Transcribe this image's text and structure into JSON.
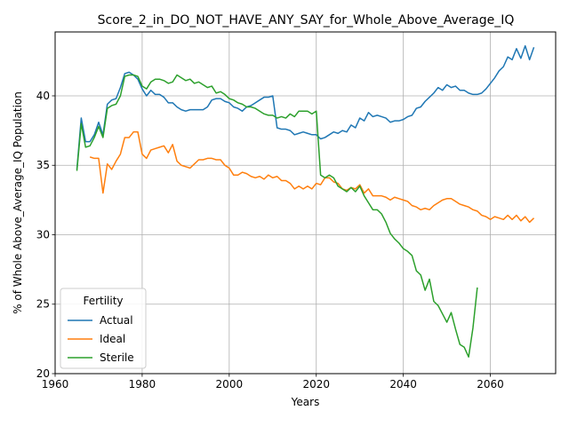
{
  "chart_data": {
    "type": "line",
    "title": "Score_2_in_DO_NOT_HAVE_ANY_SAY_for_Whole_Above_Average_IQ",
    "xlabel": "Years",
    "ylabel": "% of Whole Above_Average_IQ Population",
    "xlim": [
      1960,
      2075
    ],
    "ylim": [
      20,
      44.6
    ],
    "xticks": [
      1960,
      1980,
      2000,
      2020,
      2040,
      2060
    ],
    "yticks": [
      20,
      25,
      30,
      35,
      40
    ],
    "grid": true,
    "legend": {
      "title": "Fertility",
      "position": "lower-left"
    },
    "series": [
      {
        "name": "Actual",
        "color": "#1f77b4",
        "points": [
          [
            1965,
            34.7
          ],
          [
            1966,
            38.4
          ],
          [
            1967,
            36.7
          ],
          [
            1968,
            36.7
          ],
          [
            1969,
            37.2
          ],
          [
            1970,
            38.1
          ],
          [
            1971,
            37.2
          ],
          [
            1972,
            39.4
          ],
          [
            1973,
            39.7
          ],
          [
            1974,
            39.8
          ],
          [
            1975,
            40.6
          ],
          [
            1976,
            41.6
          ],
          [
            1977,
            41.7
          ],
          [
            1978,
            41.5
          ],
          [
            1979,
            41.2
          ],
          [
            1980,
            40.5
          ],
          [
            1981,
            40.0
          ],
          [
            1982,
            40.4
          ],
          [
            1983,
            40.1
          ],
          [
            1984,
            40.1
          ],
          [
            1985,
            39.9
          ],
          [
            1986,
            39.5
          ],
          [
            1987,
            39.5
          ],
          [
            1988,
            39.2
          ],
          [
            1989,
            39.0
          ],
          [
            1990,
            38.9
          ],
          [
            1991,
            39.0
          ],
          [
            1992,
            39.0
          ],
          [
            1993,
            39.0
          ],
          [
            1994,
            39.0
          ],
          [
            1995,
            39.2
          ],
          [
            1996,
            39.7
          ],
          [
            1997,
            39.8
          ],
          [
            1998,
            39.8
          ],
          [
            1999,
            39.6
          ],
          [
            2000,
            39.5
          ],
          [
            2001,
            39.2
          ],
          [
            2002,
            39.1
          ],
          [
            2003,
            38.9
          ],
          [
            2004,
            39.2
          ],
          [
            2005,
            39.3
          ],
          [
            2006,
            39.5
          ],
          [
            2007,
            39.7
          ],
          [
            2008,
            39.9
          ],
          [
            2009,
            39.9
          ],
          [
            2010,
            40.0
          ],
          [
            2011,
            37.7
          ],
          [
            2012,
            37.6
          ],
          [
            2013,
            37.6
          ],
          [
            2014,
            37.5
          ],
          [
            2015,
            37.2
          ],
          [
            2016,
            37.3
          ],
          [
            2017,
            37.4
          ],
          [
            2018,
            37.3
          ],
          [
            2019,
            37.2
          ],
          [
            2020,
            37.2
          ],
          [
            2021,
            36.9
          ],
          [
            2022,
            37.0
          ],
          [
            2023,
            37.2
          ],
          [
            2024,
            37.4
          ],
          [
            2025,
            37.3
          ],
          [
            2026,
            37.5
          ],
          [
            2027,
            37.4
          ],
          [
            2028,
            37.9
          ],
          [
            2029,
            37.7
          ],
          [
            2030,
            38.4
          ],
          [
            2031,
            38.2
          ],
          [
            2032,
            38.8
          ],
          [
            2033,
            38.5
          ],
          [
            2034,
            38.6
          ],
          [
            2035,
            38.5
          ],
          [
            2036,
            38.4
          ],
          [
            2037,
            38.1
          ],
          [
            2038,
            38.2
          ],
          [
            2039,
            38.2
          ],
          [
            2040,
            38.3
          ],
          [
            2041,
            38.5
          ],
          [
            2042,
            38.6
          ],
          [
            2043,
            39.1
          ],
          [
            2044,
            39.2
          ],
          [
            2045,
            39.6
          ],
          [
            2046,
            39.9
          ],
          [
            2047,
            40.2
          ],
          [
            2048,
            40.6
          ],
          [
            2049,
            40.4
          ],
          [
            2050,
            40.8
          ],
          [
            2051,
            40.6
          ],
          [
            2052,
            40.7
          ],
          [
            2053,
            40.4
          ],
          [
            2054,
            40.4
          ],
          [
            2055,
            40.2
          ],
          [
            2056,
            40.1
          ],
          [
            2057,
            40.1
          ],
          [
            2058,
            40.2
          ],
          [
            2059,
            40.5
          ],
          [
            2060,
            40.9
          ],
          [
            2061,
            41.3
          ],
          [
            2062,
            41.8
          ],
          [
            2063,
            42.1
          ],
          [
            2064,
            42.8
          ],
          [
            2065,
            42.6
          ],
          [
            2066,
            43.4
          ],
          [
            2067,
            42.7
          ],
          [
            2068,
            43.6
          ],
          [
            2069,
            42.6
          ],
          [
            2070,
            43.5
          ]
        ]
      },
      {
        "name": "Ideal",
        "color": "#ff7f0e",
        "points": [
          [
            1968,
            35.6
          ],
          [
            1969,
            35.5
          ],
          [
            1970,
            35.5
          ],
          [
            1971,
            33.0
          ],
          [
            1972,
            35.1
          ],
          [
            1973,
            34.7
          ],
          [
            1974,
            35.3
          ],
          [
            1975,
            35.8
          ],
          [
            1976,
            37.0
          ],
          [
            1977,
            37.0
          ],
          [
            1978,
            37.4
          ],
          [
            1979,
            37.4
          ],
          [
            1980,
            35.8
          ],
          [
            1981,
            35.5
          ],
          [
            1982,
            36.1
          ],
          [
            1983,
            36.2
          ],
          [
            1984,
            36.3
          ],
          [
            1985,
            36.4
          ],
          [
            1986,
            35.9
          ],
          [
            1987,
            36.5
          ],
          [
            1988,
            35.3
          ],
          [
            1989,
            35.0
          ],
          [
            1990,
            34.9
          ],
          [
            1991,
            34.8
          ],
          [
            1992,
            35.1
          ],
          [
            1993,
            35.4
          ],
          [
            1994,
            35.4
          ],
          [
            1995,
            35.5
          ],
          [
            1996,
            35.5
          ],
          [
            1997,
            35.4
          ],
          [
            1998,
            35.4
          ],
          [
            1999,
            35.0
          ],
          [
            2000,
            34.8
          ],
          [
            2001,
            34.3
          ],
          [
            2002,
            34.3
          ],
          [
            2003,
            34.5
          ],
          [
            2004,
            34.4
          ],
          [
            2005,
            34.2
          ],
          [
            2006,
            34.1
          ],
          [
            2007,
            34.2
          ],
          [
            2008,
            34.0
          ],
          [
            2009,
            34.3
          ],
          [
            2010,
            34.1
          ],
          [
            2011,
            34.2
          ],
          [
            2012,
            33.9
          ],
          [
            2013,
            33.9
          ],
          [
            2014,
            33.7
          ],
          [
            2015,
            33.3
          ],
          [
            2016,
            33.5
          ],
          [
            2017,
            33.3
          ],
          [
            2018,
            33.5
          ],
          [
            2019,
            33.3
          ],
          [
            2020,
            33.7
          ],
          [
            2021,
            33.6
          ],
          [
            2022,
            34.1
          ],
          [
            2023,
            34.1
          ],
          [
            2024,
            33.8
          ],
          [
            2025,
            33.7
          ],
          [
            2026,
            33.3
          ],
          [
            2027,
            33.2
          ],
          [
            2028,
            33.4
          ],
          [
            2029,
            33.3
          ],
          [
            2030,
            33.6
          ],
          [
            2031,
            33.0
          ],
          [
            2032,
            33.3
          ],
          [
            2033,
            32.8
          ],
          [
            2034,
            32.8
          ],
          [
            2035,
            32.8
          ],
          [
            2036,
            32.7
          ],
          [
            2037,
            32.5
          ],
          [
            2038,
            32.7
          ],
          [
            2039,
            32.6
          ],
          [
            2040,
            32.5
          ],
          [
            2041,
            32.4
          ],
          [
            2042,
            32.1
          ],
          [
            2043,
            32.0
          ],
          [
            2044,
            31.8
          ],
          [
            2045,
            31.9
          ],
          [
            2046,
            31.8
          ],
          [
            2047,
            32.1
          ],
          [
            2048,
            32.3
          ],
          [
            2049,
            32.5
          ],
          [
            2050,
            32.6
          ],
          [
            2051,
            32.6
          ],
          [
            2052,
            32.4
          ],
          [
            2053,
            32.2
          ],
          [
            2054,
            32.1
          ],
          [
            2055,
            32.0
          ],
          [
            2056,
            31.8
          ],
          [
            2057,
            31.7
          ],
          [
            2058,
            31.4
          ],
          [
            2059,
            31.3
          ],
          [
            2060,
            31.1
          ],
          [
            2061,
            31.3
          ],
          [
            2062,
            31.2
          ],
          [
            2063,
            31.1
          ],
          [
            2064,
            31.4
          ],
          [
            2065,
            31.1
          ],
          [
            2066,
            31.4
          ],
          [
            2067,
            31.0
          ],
          [
            2068,
            31.3
          ],
          [
            2069,
            30.9
          ],
          [
            2070,
            31.2
          ]
        ]
      },
      {
        "name": "Sterile",
        "color": "#2ca02c",
        "points": [
          [
            1965,
            34.6
          ],
          [
            1966,
            38.0
          ],
          [
            1967,
            36.3
          ],
          [
            1968,
            36.4
          ],
          [
            1969,
            37.0
          ],
          [
            1970,
            37.8
          ],
          [
            1971,
            37.0
          ],
          [
            1972,
            39.1
          ],
          [
            1973,
            39.3
          ],
          [
            1974,
            39.4
          ],
          [
            1975,
            40.0
          ],
          [
            1976,
            41.4
          ],
          [
            1977,
            41.5
          ],
          [
            1978,
            41.5
          ],
          [
            1979,
            41.4
          ],
          [
            1980,
            40.7
          ],
          [
            1981,
            40.5
          ],
          [
            1982,
            41.0
          ],
          [
            1983,
            41.2
          ],
          [
            1984,
            41.2
          ],
          [
            1985,
            41.1
          ],
          [
            1986,
            40.9
          ],
          [
            1987,
            41.0
          ],
          [
            1988,
            41.5
          ],
          [
            1989,
            41.3
          ],
          [
            1990,
            41.1
          ],
          [
            1991,
            41.2
          ],
          [
            1992,
            40.9
          ],
          [
            1993,
            41.0
          ],
          [
            1994,
            40.8
          ],
          [
            1995,
            40.6
          ],
          [
            1996,
            40.7
          ],
          [
            1997,
            40.2
          ],
          [
            1998,
            40.3
          ],
          [
            1999,
            40.1
          ],
          [
            2000,
            39.8
          ],
          [
            2001,
            39.7
          ],
          [
            2002,
            39.5
          ],
          [
            2003,
            39.4
          ],
          [
            2004,
            39.2
          ],
          [
            2005,
            39.2
          ],
          [
            2006,
            39.1
          ],
          [
            2007,
            38.9
          ],
          [
            2008,
            38.7
          ],
          [
            2009,
            38.6
          ],
          [
            2010,
            38.6
          ],
          [
            2011,
            38.4
          ],
          [
            2012,
            38.5
          ],
          [
            2013,
            38.4
          ],
          [
            2014,
            38.7
          ],
          [
            2015,
            38.5
          ],
          [
            2016,
            38.9
          ],
          [
            2017,
            38.9
          ],
          [
            2018,
            38.9
          ],
          [
            2019,
            38.7
          ],
          [
            2020,
            38.9
          ],
          [
            2021,
            34.3
          ],
          [
            2022,
            34.1
          ],
          [
            2023,
            34.3
          ],
          [
            2024,
            34.1
          ],
          [
            2025,
            33.5
          ],
          [
            2026,
            33.3
          ],
          [
            2027,
            33.1
          ],
          [
            2028,
            33.4
          ],
          [
            2029,
            33.1
          ],
          [
            2030,
            33.5
          ],
          [
            2031,
            32.8
          ],
          [
            2032,
            32.3
          ],
          [
            2033,
            31.8
          ],
          [
            2034,
            31.8
          ],
          [
            2035,
            31.5
          ],
          [
            2036,
            30.9
          ],
          [
            2037,
            30.1
          ],
          [
            2038,
            29.7
          ],
          [
            2039,
            29.4
          ],
          [
            2040,
            29.0
          ],
          [
            2041,
            28.8
          ],
          [
            2042,
            28.5
          ],
          [
            2043,
            27.4
          ],
          [
            2044,
            27.1
          ],
          [
            2045,
            26.0
          ],
          [
            2046,
            26.8
          ],
          [
            2047,
            25.2
          ],
          [
            2048,
            24.9
          ],
          [
            2049,
            24.3
          ],
          [
            2050,
            23.7
          ],
          [
            2051,
            24.4
          ],
          [
            2052,
            23.2
          ],
          [
            2053,
            22.1
          ],
          [
            2054,
            21.9
          ],
          [
            2055,
            21.2
          ],
          [
            2056,
            23.3
          ],
          [
            2057,
            26.2
          ]
        ]
      }
    ]
  }
}
